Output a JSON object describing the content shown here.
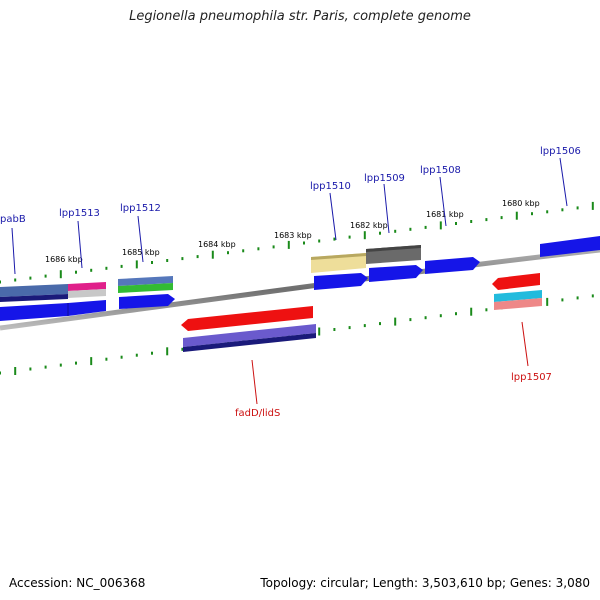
{
  "title": "Legionella pneumophila str. Paris, complete genome",
  "footer": {
    "accession_label": "Accession:",
    "accession": "NC_006368",
    "topology_label": "Topology:",
    "topology": "circular",
    "length_label": "Length:",
    "length": "3,503,610 bp",
    "genes_label": "Genes:",
    "genes": "3,080"
  },
  "scale_labels": [
    "1686 kbp",
    "1685 kbp",
    "1684 kbp",
    "1683 kbp",
    "1682 kbp",
    "1681 kbp",
    "1680 kbp"
  ],
  "gene_labels": {
    "plus": [
      "pabB",
      "lpp1513",
      "lpp1512",
      "lpp1510",
      "lpp1509",
      "lpp1508",
      "lpp1506"
    ],
    "minus": [
      "fadD/lidS",
      "lpp1507"
    ]
  },
  "colors": {
    "backbone": "#8a8a8a",
    "tick": "#1a8a1a",
    "plus_label": "#1a1aaa",
    "minus_label": "#cc1111",
    "cds": "#1515e8",
    "cds_minus": "#ee1111",
    "navy": "#1a1a7a",
    "slate": "#4a6aaa",
    "pink": "#e0208a",
    "silver": "#c8c8c8",
    "green": "#33bb33",
    "khaki": "#eede9a",
    "gray": "#6a6a6a",
    "purple": "#6a5acd",
    "cyan": "#22bbdd",
    "salmon": "#ee8888"
  }
}
